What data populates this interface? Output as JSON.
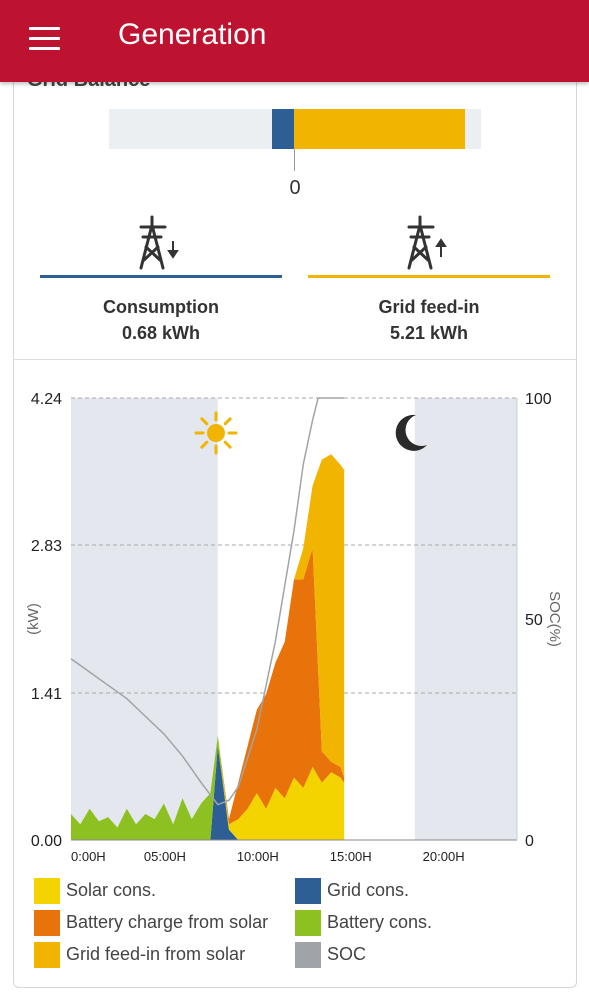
{
  "app": {
    "title": "Generation"
  },
  "grid_balance": {
    "title": "Grid Balance",
    "zero_label": "0",
    "consumption": {
      "label": "Consumption",
      "value": "0.68 kWh",
      "color": "#2d5f94",
      "icon": "pylon-down-icon"
    },
    "feed_in": {
      "label": "Grid feed-in",
      "value": "5.21 kWh",
      "color": "#f1b400",
      "icon": "pylon-up-icon"
    }
  },
  "chart_data": {
    "type": "area",
    "y_axis_left": {
      "label": "(kW)",
      "ticks": [
        "4.24",
        "2.83",
        "1.41",
        "0.00"
      ],
      "range": [
        0,
        4.24
      ]
    },
    "y_axis_right": {
      "label": "SOC(%)",
      "ticks": [
        "100",
        "50",
        "0"
      ],
      "range": [
        0,
        100
      ]
    },
    "x_axis": {
      "ticks": [
        "0:00H",
        "05:00H",
        "10:00H",
        "15:00H",
        "20:00H"
      ],
      "range": [
        0,
        24
      ]
    },
    "night_periods": [
      [
        0,
        7.9
      ],
      [
        18.5,
        24
      ]
    ],
    "day_icon": "sun-icon",
    "night_icon": "moon-icon",
    "x": [
      0,
      0.5,
      1,
      1.5,
      2,
      2.5,
      3,
      3.5,
      4,
      4.5,
      5,
      5.5,
      6,
      6.5,
      7,
      7.5,
      7.9,
      8.5,
      9,
      9.5,
      10,
      10.5,
      11,
      11.5,
      12,
      12.5,
      13,
      13.5,
      14,
      14.5,
      14.7
    ],
    "series": [
      {
        "name": "Solar cons.",
        "color": "#f4d400",
        "values": [
          0,
          0,
          0,
          0,
          0,
          0,
          0,
          0,
          0,
          0,
          0,
          0,
          0,
          0,
          0,
          0,
          0,
          0.05,
          0.2,
          0.3,
          0.45,
          0.3,
          0.5,
          0.4,
          0.6,
          0.5,
          0.7,
          0.55,
          0.65,
          0.6,
          0.55
        ]
      },
      {
        "name": "Battery charge from solar",
        "color": "#e8730a",
        "values": [
          0,
          0,
          0,
          0,
          0,
          0,
          0,
          0,
          0,
          0,
          0,
          0,
          0,
          0,
          0,
          0,
          0,
          0.05,
          0.35,
          0.6,
          0.8,
          1.1,
          1.2,
          1.5,
          1.9,
          2.0,
          2.1,
          0.3,
          0.1,
          0.1,
          0.05
        ]
      },
      {
        "name": "Grid feed-in from solar",
        "color": "#f1b400",
        "values": [
          0,
          0,
          0,
          0,
          0,
          0,
          0,
          0,
          0,
          0,
          0,
          0,
          0,
          0,
          0,
          0,
          0,
          0,
          0,
          0,
          0,
          0,
          0,
          0,
          0,
          0.3,
          0.6,
          2.8,
          2.95,
          2.9,
          2.95
        ]
      },
      {
        "name": "Grid cons.",
        "color": "#2d5f94",
        "values": [
          0,
          0,
          0,
          0,
          0,
          0,
          0,
          0,
          0,
          0,
          0,
          0,
          0,
          0,
          0,
          0,
          0.9,
          0.1,
          0,
          0,
          0,
          0,
          0,
          0,
          0,
          0,
          0,
          0,
          0,
          0,
          0
        ]
      },
      {
        "name": "Battery cons.",
        "color": "#8dc021",
        "values": [
          0.25,
          0.15,
          0.3,
          0.18,
          0.22,
          0.12,
          0.3,
          0.15,
          0.25,
          0.2,
          0.35,
          0.15,
          0.4,
          0.2,
          0.35,
          0.45,
          0.1,
          0,
          0,
          0,
          0,
          0,
          0,
          0,
          0,
          0,
          0,
          0,
          0,
          0,
          0
        ]
      },
      {
        "name": "SOC",
        "color": "#a0a4a8",
        "axis": "right",
        "x": [
          0,
          1,
          2,
          3,
          4,
          5,
          6,
          7,
          7.9,
          8.5,
          9,
          10,
          11,
          12,
          12.5,
          13,
          13.3,
          14,
          14.7
        ],
        "values": [
          41,
          38,
          35,
          32,
          28,
          24,
          19,
          13,
          8,
          9,
          12,
          25,
          45,
          70,
          85,
          95,
          100,
          100,
          100
        ]
      }
    ]
  },
  "legend": [
    {
      "label": "Solar cons.",
      "color": "#f4d400"
    },
    {
      "label": "Grid cons.",
      "color": "#2d5f94"
    },
    {
      "label": "Battery charge from solar",
      "color": "#e8730a"
    },
    {
      "label": "Battery cons.",
      "color": "#8dc021"
    },
    {
      "label": "Grid feed-in from solar",
      "color": "#f1b400"
    },
    {
      "label": "SOC",
      "color": "#a0a4a8"
    }
  ]
}
